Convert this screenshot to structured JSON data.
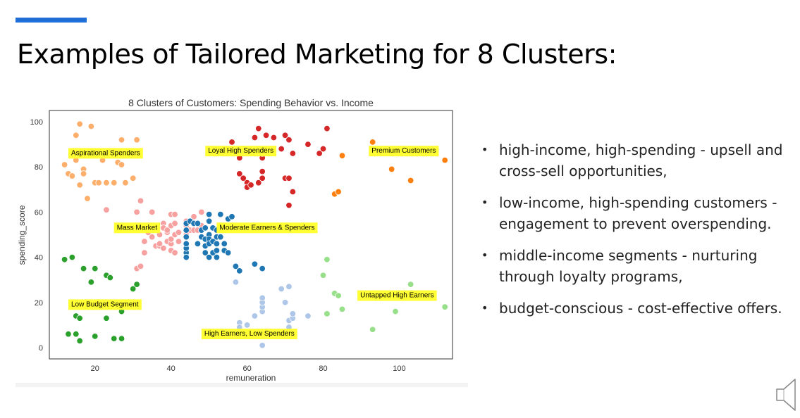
{
  "slide": {
    "title": "Examples of Tailored Marketing for 8 Clusters:",
    "bullets": [
      "high-income, high-spending - upsell and cross-sell opportunities,",
      "low-income, high-spending customers - engagement to prevent overspending.",
      "middle-income segments - nurturing through loyalty programs,",
      "budget-conscious - cost-effective offers."
    ],
    "bullet_glyph": "•",
    "icons": {
      "audio": "speaker-icon"
    }
  },
  "chart_data": {
    "type": "scatter",
    "title": "8 Clusters of Customers: Spending Behavior vs. Income",
    "xlabel": "remuneration",
    "ylabel": "spending_score",
    "xlim": [
      8,
      114
    ],
    "ylim": [
      -5,
      105
    ],
    "xticks": [
      20,
      40,
      60,
      80,
      100
    ],
    "yticks": [
      0,
      20,
      40,
      60,
      80,
      100
    ],
    "grid": false,
    "series": [
      {
        "color": "#fdae6b",
        "points": [
          [
            12,
            81
          ],
          [
            13,
            77
          ],
          [
            14,
            76
          ],
          [
            15,
            94
          ],
          [
            15,
            83
          ],
          [
            16,
            99
          ],
          [
            16,
            72
          ],
          [
            17,
            79
          ],
          [
            17,
            77
          ],
          [
            18,
            66
          ],
          [
            19,
            98
          ],
          [
            20,
            73
          ],
          [
            21,
            73
          ],
          [
            22,
            83
          ],
          [
            23,
            73
          ],
          [
            24,
            87
          ],
          [
            25,
            73
          ],
          [
            26,
            82
          ],
          [
            27,
            92
          ],
          [
            27,
            81
          ],
          [
            28,
            73
          ],
          [
            30,
            75
          ],
          [
            31,
            92
          ]
        ]
      },
      {
        "color": "#d62728",
        "points": [
          [
            56,
            91
          ],
          [
            58,
            77
          ],
          [
            58,
            84
          ],
          [
            59,
            88
          ],
          [
            59,
            75
          ],
          [
            60,
            73
          ],
          [
            60,
            71
          ],
          [
            61,
            88
          ],
          [
            61,
            72
          ],
          [
            62,
            93
          ],
          [
            63,
            97
          ],
          [
            63,
            73
          ],
          [
            64,
            85
          ],
          [
            64,
            84
          ],
          [
            64,
            86
          ],
          [
            64,
            75
          ],
          [
            64,
            78
          ],
          [
            65,
            94
          ],
          [
            66,
            88
          ],
          [
            67,
            93
          ],
          [
            69,
            88
          ],
          [
            70,
            75
          ],
          [
            70,
            94
          ],
          [
            71,
            75
          ],
          [
            71,
            92
          ],
          [
            71,
            63
          ],
          [
            72,
            69
          ],
          [
            72,
            86
          ],
          [
            76,
            90
          ],
          [
            79,
            86
          ],
          [
            80,
            88
          ],
          [
            81,
            97
          ]
        ]
      },
      {
        "color": "#ff7f0e",
        "points": [
          [
            83,
            68
          ],
          [
            84,
            69
          ],
          [
            85,
            85
          ],
          [
            93,
            91
          ],
          [
            98,
            79
          ],
          [
            103,
            74
          ],
          [
            112,
            83
          ]
        ]
      },
      {
        "color": "#f7a0a0",
        "points": [
          [
            23,
            61
          ],
          [
            31,
            35
          ],
          [
            31,
            60
          ],
          [
            32,
            65
          ],
          [
            32,
            36
          ],
          [
            33,
            42
          ],
          [
            33,
            47
          ],
          [
            34,
            51
          ],
          [
            34,
            53
          ],
          [
            35,
            60
          ],
          [
            35,
            49
          ],
          [
            35,
            54
          ],
          [
            36,
            45
          ],
          [
            36,
            52
          ],
          [
            37,
            45
          ],
          [
            37,
            50
          ],
          [
            37,
            46
          ],
          [
            38,
            55
          ],
          [
            38,
            53
          ],
          [
            38,
            44
          ],
          [
            39,
            51
          ],
          [
            39,
            52
          ],
          [
            39,
            47
          ],
          [
            40,
            59
          ],
          [
            40,
            46
          ],
          [
            40,
            54
          ],
          [
            40,
            48
          ],
          [
            40,
            43
          ],
          [
            41,
            50
          ],
          [
            41,
            42
          ],
          [
            41,
            55
          ],
          [
            41,
            59
          ],
          [
            42,
            51
          ],
          [
            42,
            47
          ],
          [
            44,
            56
          ],
          [
            44,
            52
          ],
          [
            44,
            54
          ],
          [
            44,
            50
          ],
          [
            44,
            45
          ],
          [
            45,
            52
          ],
          [
            46,
            52
          ],
          [
            46,
            58
          ],
          [
            47,
            52
          ],
          [
            47,
            55
          ],
          [
            48,
            60
          ],
          [
            48,
            54
          ]
        ]
      },
      {
        "color": "#1f77b4",
        "points": [
          [
            44,
            42
          ],
          [
            44,
            40
          ],
          [
            44,
            44
          ],
          [
            44,
            46
          ],
          [
            44,
            49
          ],
          [
            44,
            52
          ],
          [
            44,
            55
          ],
          [
            45,
            56
          ],
          [
            46,
            55
          ],
          [
            47,
            46
          ],
          [
            47,
            55
          ],
          [
            48,
            49
          ],
          [
            48,
            52
          ],
          [
            49,
            53
          ],
          [
            49,
            42
          ],
          [
            49,
            48
          ],
          [
            49,
            45
          ],
          [
            50,
            50
          ],
          [
            50,
            40
          ],
          [
            50,
            48
          ],
          [
            50,
            46
          ],
          [
            50,
            56
          ],
          [
            50,
            59
          ],
          [
            51,
            42
          ],
          [
            51,
            47
          ],
          [
            51,
            53
          ],
          [
            52,
            52
          ],
          [
            52,
            49
          ],
          [
            52,
            46
          ],
          [
            52,
            43
          ],
          [
            52,
            40
          ],
          [
            53,
            59
          ],
          [
            53,
            49
          ],
          [
            54,
            46
          ],
          [
            54,
            43
          ],
          [
            55,
            42
          ],
          [
            55,
            57
          ],
          [
            55,
            52
          ],
          [
            56,
            58
          ],
          [
            57,
            36
          ],
          [
            58,
            34
          ],
          [
            62,
            37
          ],
          [
            64,
            35
          ]
        ]
      },
      {
        "color": "#aec7e8",
        "points": [
          [
            57,
            29
          ],
          [
            58,
            11
          ],
          [
            58,
            9
          ],
          [
            59,
            7
          ],
          [
            60,
            10
          ],
          [
            62,
            14
          ],
          [
            64,
            1
          ],
          [
            64,
            16
          ],
          [
            64,
            18
          ],
          [
            64,
            20
          ],
          [
            64,
            22
          ],
          [
            69,
            26
          ],
          [
            70,
            20
          ],
          [
            71,
            27
          ],
          [
            71,
            12
          ],
          [
            71,
            9
          ],
          [
            72,
            13
          ],
          [
            72,
            15
          ],
          [
            76,
            14
          ]
        ]
      },
      {
        "color": "#98df8a",
        "points": [
          [
            80,
            32
          ],
          [
            81,
            15
          ],
          [
            81,
            39
          ],
          [
            83,
            24
          ],
          [
            84,
            23
          ],
          [
            85,
            17
          ],
          [
            93,
            8
          ],
          [
            99,
            16
          ],
          [
            103,
            28
          ],
          [
            112,
            18
          ]
        ]
      },
      {
        "color": "#2ca02c",
        "points": [
          [
            12,
            39
          ],
          [
            13,
            6
          ],
          [
            14,
            40
          ],
          [
            15,
            6
          ],
          [
            15,
            14
          ],
          [
            16,
            3
          ],
          [
            16,
            13
          ],
          [
            17,
            35
          ],
          [
            19,
            29
          ],
          [
            20,
            35
          ],
          [
            20,
            5
          ],
          [
            23,
            32
          ],
          [
            23,
            13
          ],
          [
            24,
            31
          ],
          [
            25,
            4
          ],
          [
            27,
            16
          ],
          [
            27,
            4
          ],
          [
            28,
            18
          ],
          [
            30,
            26
          ],
          [
            31,
            28
          ]
        ]
      }
    ],
    "annotations": [
      {
        "text": "Aspirational Spenders",
        "x": 13,
        "y": 84
      },
      {
        "text": "Loyal High Spenders",
        "x": 49,
        "y": 85
      },
      {
        "text": "Premium Customers",
        "x": 92,
        "y": 85
      },
      {
        "text": "Mass Market",
        "x": 25,
        "y": 51
      },
      {
        "text": "Moderate Earners & Spenders",
        "x": 52,
        "y": 51
      },
      {
        "text": "Low Budget Segment",
        "x": 13,
        "y": 17
      },
      {
        "text": "Untapped High Earners",
        "x": 89,
        "y": 21
      },
      {
        "text": "High Earners, Low Spenders",
        "x": 48,
        "y": 4
      }
    ],
    "annotation_bg": "#ffff33"
  }
}
